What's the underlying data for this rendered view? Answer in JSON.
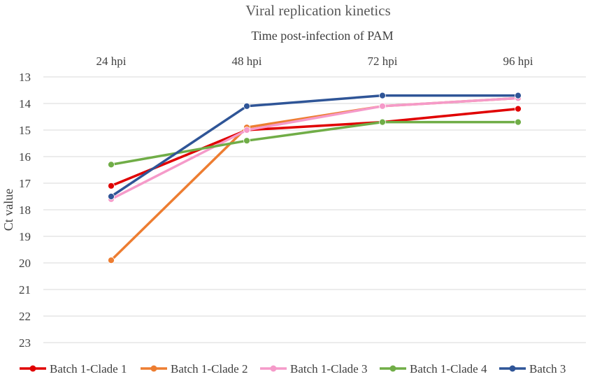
{
  "chart_data": {
    "type": "line",
    "title": "Viral replication kinetics",
    "xlabel": "Time post-infection of PAM",
    "ylabel": "Ct value",
    "categories": [
      "24 hpi",
      "48 hpi",
      "72 hpi",
      "96 hpi"
    ],
    "y_ticks": [
      "13",
      "14",
      "15",
      "16",
      "17",
      "18",
      "19",
      "20",
      "21",
      "22",
      "23"
    ],
    "ylim": [
      13,
      23
    ],
    "y_inverted": true,
    "x_axis_position": "top",
    "grid": true,
    "legend_position": "bottom",
    "series": [
      {
        "name": "Batch 1-Clade 1",
        "color": "#e00000",
        "values": [
          17.1,
          15.0,
          14.7,
          14.2
        ]
      },
      {
        "name": "Batch 1-Clade 2",
        "color": "#ed7d31",
        "values": [
          19.9,
          14.9,
          14.1,
          13.8
        ]
      },
      {
        "name": "Batch 1-Clade 3",
        "color": "#f59ac9",
        "values": [
          17.6,
          15.0,
          14.1,
          13.8
        ]
      },
      {
        "name": "Batch 1-Clade 4",
        "color": "#70ad47",
        "values": [
          16.3,
          15.4,
          14.7,
          14.7
        ]
      },
      {
        "name": "Batch 3",
        "color": "#2f5597",
        "values": [
          17.5,
          14.1,
          13.7,
          13.7
        ]
      }
    ]
  }
}
